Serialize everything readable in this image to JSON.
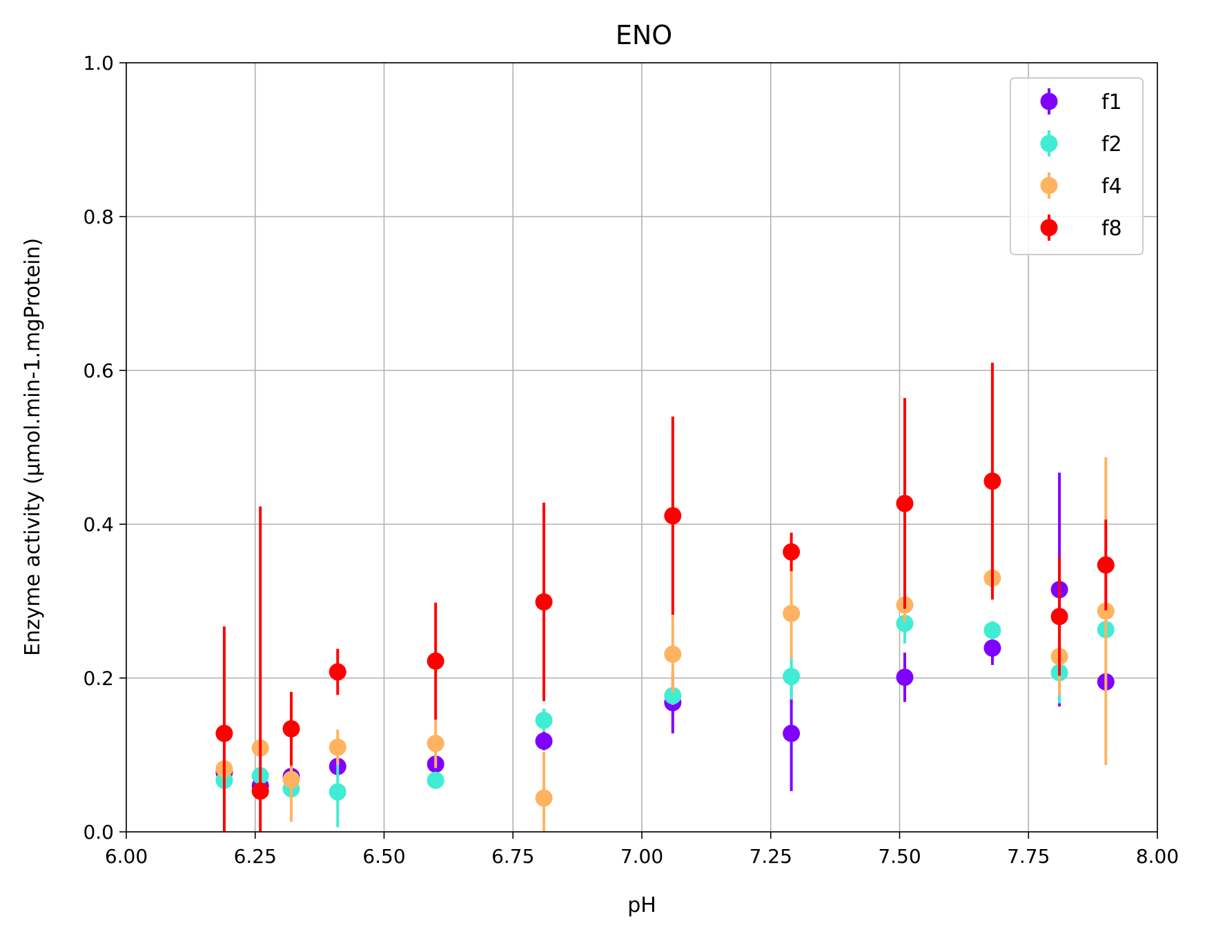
{
  "chart_data": {
    "type": "scatter",
    "title": "ENO",
    "xlabel": "pH",
    "ylabel": "Enzyme activity (µmol.min-1.mgProtein)",
    "xlim": [
      6.0,
      8.0
    ],
    "ylim": [
      0.0,
      1.0
    ],
    "xticks": [
      "6.00",
      "6.25",
      "6.50",
      "6.75",
      "7.00",
      "7.25",
      "7.50",
      "7.75",
      "8.00"
    ],
    "yticks": [
      "0.0",
      "0.2",
      "0.4",
      "0.6",
      "0.8",
      "1.0"
    ],
    "grid": true,
    "legend_position": "top-right",
    "series": [
      {
        "name": "f1",
        "color": "#8000ff",
        "points": [
          {
            "x": 6.19,
            "y": 0.077,
            "err": 0.01
          },
          {
            "x": 6.26,
            "y": 0.06,
            "err": 0.01
          },
          {
            "x": 6.32,
            "y": 0.072,
            "err": 0.012
          },
          {
            "x": 6.41,
            "y": 0.085,
            "err": 0.012
          },
          {
            "x": 6.6,
            "y": 0.088,
            "err": 0.012
          },
          {
            "x": 6.81,
            "y": 0.118,
            "err": 0.012
          },
          {
            "x": 7.06,
            "y": 0.168,
            "err": 0.04
          },
          {
            "x": 7.29,
            "y": 0.128,
            "err": 0.075
          },
          {
            "x": 7.51,
            "y": 0.201,
            "err": 0.032
          },
          {
            "x": 7.68,
            "y": 0.239,
            "err": 0.022
          },
          {
            "x": 7.81,
            "y": 0.315,
            "err": 0.152
          },
          {
            "x": 7.9,
            "y": 0.195,
            "err": 0.012
          }
        ]
      },
      {
        "name": "f2",
        "color": "#40ecd4",
        "points": [
          {
            "x": 6.19,
            "y": 0.067,
            "err": 0.01
          },
          {
            "x": 6.26,
            "y": 0.073,
            "err": 0.01
          },
          {
            "x": 6.32,
            "y": 0.056,
            "err": 0.012
          },
          {
            "x": 6.41,
            "y": 0.052,
            "err": 0.046
          },
          {
            "x": 6.6,
            "y": 0.067,
            "err": 0.01
          },
          {
            "x": 6.81,
            "y": 0.145,
            "err": 0.015
          },
          {
            "x": 7.06,
            "y": 0.177,
            "err": 0.012
          },
          {
            "x": 7.29,
            "y": 0.202,
            "err": 0.03
          },
          {
            "x": 7.51,
            "y": 0.271,
            "err": 0.026
          },
          {
            "x": 7.68,
            "y": 0.262,
            "err": 0.012
          },
          {
            "x": 7.81,
            "y": 0.207,
            "err": 0.04
          },
          {
            "x": 7.9,
            "y": 0.263,
            "err": 0.012
          }
        ]
      },
      {
        "name": "f4",
        "color": "#ffb360",
        "points": [
          {
            "x": 6.19,
            "y": 0.082,
            "err": 0.01
          },
          {
            "x": 6.26,
            "y": 0.109,
            "err": 0.01
          },
          {
            "x": 6.32,
            "y": 0.068,
            "err": 0.055
          },
          {
            "x": 6.41,
            "y": 0.11,
            "err": 0.023
          },
          {
            "x": 6.6,
            "y": 0.115,
            "err": 0.032
          },
          {
            "x": 6.81,
            "y": 0.044,
            "err": 0.06
          },
          {
            "x": 7.06,
            "y": 0.231,
            "err": 0.05
          },
          {
            "x": 7.29,
            "y": 0.284,
            "err": 0.058
          },
          {
            "x": 7.51,
            "y": 0.295,
            "err": 0.022
          },
          {
            "x": 7.68,
            "y": 0.33,
            "err": 0.022
          },
          {
            "x": 7.81,
            "y": 0.228,
            "err": 0.05
          },
          {
            "x": 7.9,
            "y": 0.287,
            "err": 0.2
          }
        ]
      },
      {
        "name": "f8",
        "color": "#ff0000",
        "points": [
          {
            "x": 6.19,
            "y": 0.128,
            "err": 0.139
          },
          {
            "x": 6.26,
            "y": 0.053,
            "err": 0.37
          },
          {
            "x": 6.32,
            "y": 0.134,
            "err": 0.048
          },
          {
            "x": 6.41,
            "y": 0.208,
            "err": 0.03
          },
          {
            "x": 6.6,
            "y": 0.222,
            "err": 0.076
          },
          {
            "x": 6.81,
            "y": 0.299,
            "err": 0.129
          },
          {
            "x": 7.06,
            "y": 0.411,
            "err": 0.129
          },
          {
            "x": 7.29,
            "y": 0.364,
            "err": 0.025
          },
          {
            "x": 7.51,
            "y": 0.427,
            "err": 0.137
          },
          {
            "x": 7.68,
            "y": 0.456,
            "err": 0.154
          },
          {
            "x": 7.81,
            "y": 0.28,
            "err": 0.077
          },
          {
            "x": 7.9,
            "y": 0.347,
            "err": 0.059
          }
        ]
      }
    ]
  }
}
